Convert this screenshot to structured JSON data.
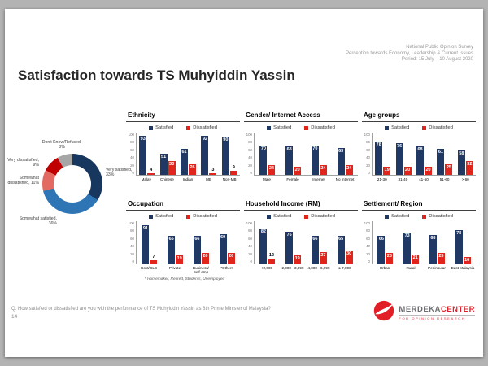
{
  "slide": {
    "title": "Satisfaction towards TS Muhyiddin Yassin",
    "header_lines": [
      "National Public Opinion Survey",
      "Perception towards Economy, Leadership & Current Issues",
      "Period: 15 July – 10 August 2020"
    ],
    "question": "Q: How satisfied or dissatisfied are you with the performance of TS Muhyiddin Yassin as 8th Prime Minister of Malaysia?",
    "page_number": "14",
    "occupation_footnote": "* Homemaker, Retired, Students, Unemployed"
  },
  "logo": {
    "brand_gray": "MERDEKA",
    "brand_red": "CENTER",
    "tagline": "FOR OPINION RESEARCH",
    "circle_color": "#e21e26"
  },
  "y_ticks": [
    100,
    80,
    60,
    40,
    20,
    0
  ],
  "chart_data": [
    {
      "type": "pie",
      "name": "overall-satisfaction-donut",
      "slices": [
        {
          "label": "Very satisfied, 33%",
          "value": 33,
          "color": "#17375e"
        },
        {
          "label": "Somewhat satisfied, 36%",
          "value": 36,
          "color": "#2e75b6"
        },
        {
          "label": "Somewhat dissatisfied, 11%",
          "value": 11,
          "color": "#e26a62"
        },
        {
          "label": "Very dissatisfied, 9%",
          "value": 9,
          "color": "#c00000"
        },
        {
          "label": "Don't Know/Refused, 8%",
          "value": 8,
          "color": "#a6a6a6"
        }
      ]
    },
    {
      "type": "bar",
      "title": "Ethnicity",
      "categories": [
        "Malay",
        "Chinese",
        "Indian",
        "MB",
        "Non-MB"
      ],
      "series": [
        {
          "name": "Satisfied",
          "color": "#1f3864",
          "values": [
            93,
            51,
            61,
            92,
            90
          ]
        },
        {
          "name": "Dissatisfied",
          "color": "#e0251c",
          "values": [
            4,
            33,
            26,
            3,
            9
          ]
        }
      ],
      "ylim": [
        0,
        100
      ]
    },
    {
      "type": "bar",
      "title": "Gender/ Internet Access",
      "categories": [
        "Male",
        "Female",
        "Internet",
        "No Internet"
      ],
      "series": [
        {
          "name": "Satisfied",
          "color": "#1f3864",
          "values": [
            70,
            68,
            70,
            63
          ]
        },
        {
          "name": "Dissatisfied",
          "color": "#e0251c",
          "values": [
            24,
            20,
            24,
            24
          ]
        }
      ],
      "ylim": [
        0,
        100
      ]
    },
    {
      "type": "bar",
      "title": "Age groups",
      "categories": [
        "21-30",
        "31-40",
        "41-50",
        "51-60",
        "> 60"
      ],
      "series": [
        {
          "name": "Satisfied",
          "color": "#1f3864",
          "values": [
            78,
            76,
            68,
            61,
            58
          ]
        },
        {
          "name": "Dissatisfied",
          "color": "#e0251c",
          "values": [
            19,
            20,
            20,
            25,
            32
          ]
        }
      ],
      "ylim": [
        0,
        100
      ]
    },
    {
      "type": "bar",
      "title": "Occupation",
      "categories": [
        "Govt/GLC",
        "Private",
        "Business/ Self-emp",
        "*Others"
      ],
      "series": [
        {
          "name": "Satisfied",
          "color": "#1f3864",
          "values": [
            91,
            65,
            66,
            69
          ]
        },
        {
          "name": "Dissatisfied",
          "color": "#e0251c",
          "values": [
            7,
            19,
            26,
            26
          ]
        }
      ],
      "ylim": [
        0,
        100
      ]
    },
    {
      "type": "bar",
      "title": "Household Income (RM)",
      "categories": [
        "<2,000",
        "2,000 - 3,999",
        "4,000 - 6,999",
        "≥ 7,000"
      ],
      "series": [
        {
          "name": "Satisfied",
          "color": "#1f3864",
          "values": [
            82,
            76,
            66,
            65
          ]
        },
        {
          "name": "Dissatisfied",
          "color": "#e0251c",
          "values": [
            12,
            19,
            27,
            30
          ]
        }
      ],
      "ylim": [
        0,
        100
      ]
    },
    {
      "type": "bar",
      "title": "Settlement/ Region",
      "categories": [
        "Urban",
        "Rural",
        "Peninsular",
        "East Malaysia"
      ],
      "series": [
        {
          "name": "Satisfied",
          "color": "#1f3864",
          "values": [
            66,
            73,
            68,
            78
          ]
        },
        {
          "name": "Dissatisfied",
          "color": "#e0251c",
          "values": [
            25,
            21,
            25,
            16
          ]
        }
      ],
      "ylim": [
        0,
        100
      ]
    }
  ]
}
